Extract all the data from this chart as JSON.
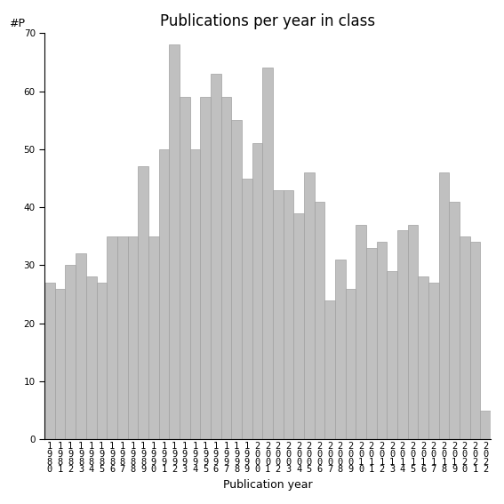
{
  "title": "Publications per year in class",
  "xlabel": "Publication year",
  "ylabel": "#P",
  "years": [
    1980,
    1981,
    1982,
    1983,
    1984,
    1985,
    1986,
    1987,
    1988,
    1989,
    1990,
    1991,
    1992,
    1993,
    1994,
    1995,
    1996,
    1997,
    1998,
    1999,
    2000,
    2001,
    2002,
    2003,
    2004,
    2005,
    2006,
    2007,
    2008,
    2009,
    2010,
    2011,
    2012,
    2013,
    2014,
    2015,
    2016,
    2017,
    2018,
    2019,
    2020,
    2021,
    2022
  ],
  "values": [
    27,
    26,
    30,
    32,
    28,
    27,
    35,
    35,
    35,
    47,
    35,
    50,
    68,
    59,
    50,
    59,
    63,
    59,
    55,
    45,
    51,
    64,
    43,
    43,
    39,
    46,
    41,
    24,
    31,
    26,
    37,
    33,
    34,
    29,
    36,
    37,
    28,
    27,
    46,
    41,
    35,
    34,
    5
  ],
  "bar_color": "#c0c0c0",
  "bar_edgecolor": "#a0a0a0",
  "ylim": [
    0,
    70
  ],
  "yticks": [
    0,
    10,
    20,
    30,
    40,
    50,
    60,
    70
  ],
  "background_color": "#ffffff",
  "title_fontsize": 12,
  "label_fontsize": 9,
  "tick_fontsize": 7.5
}
